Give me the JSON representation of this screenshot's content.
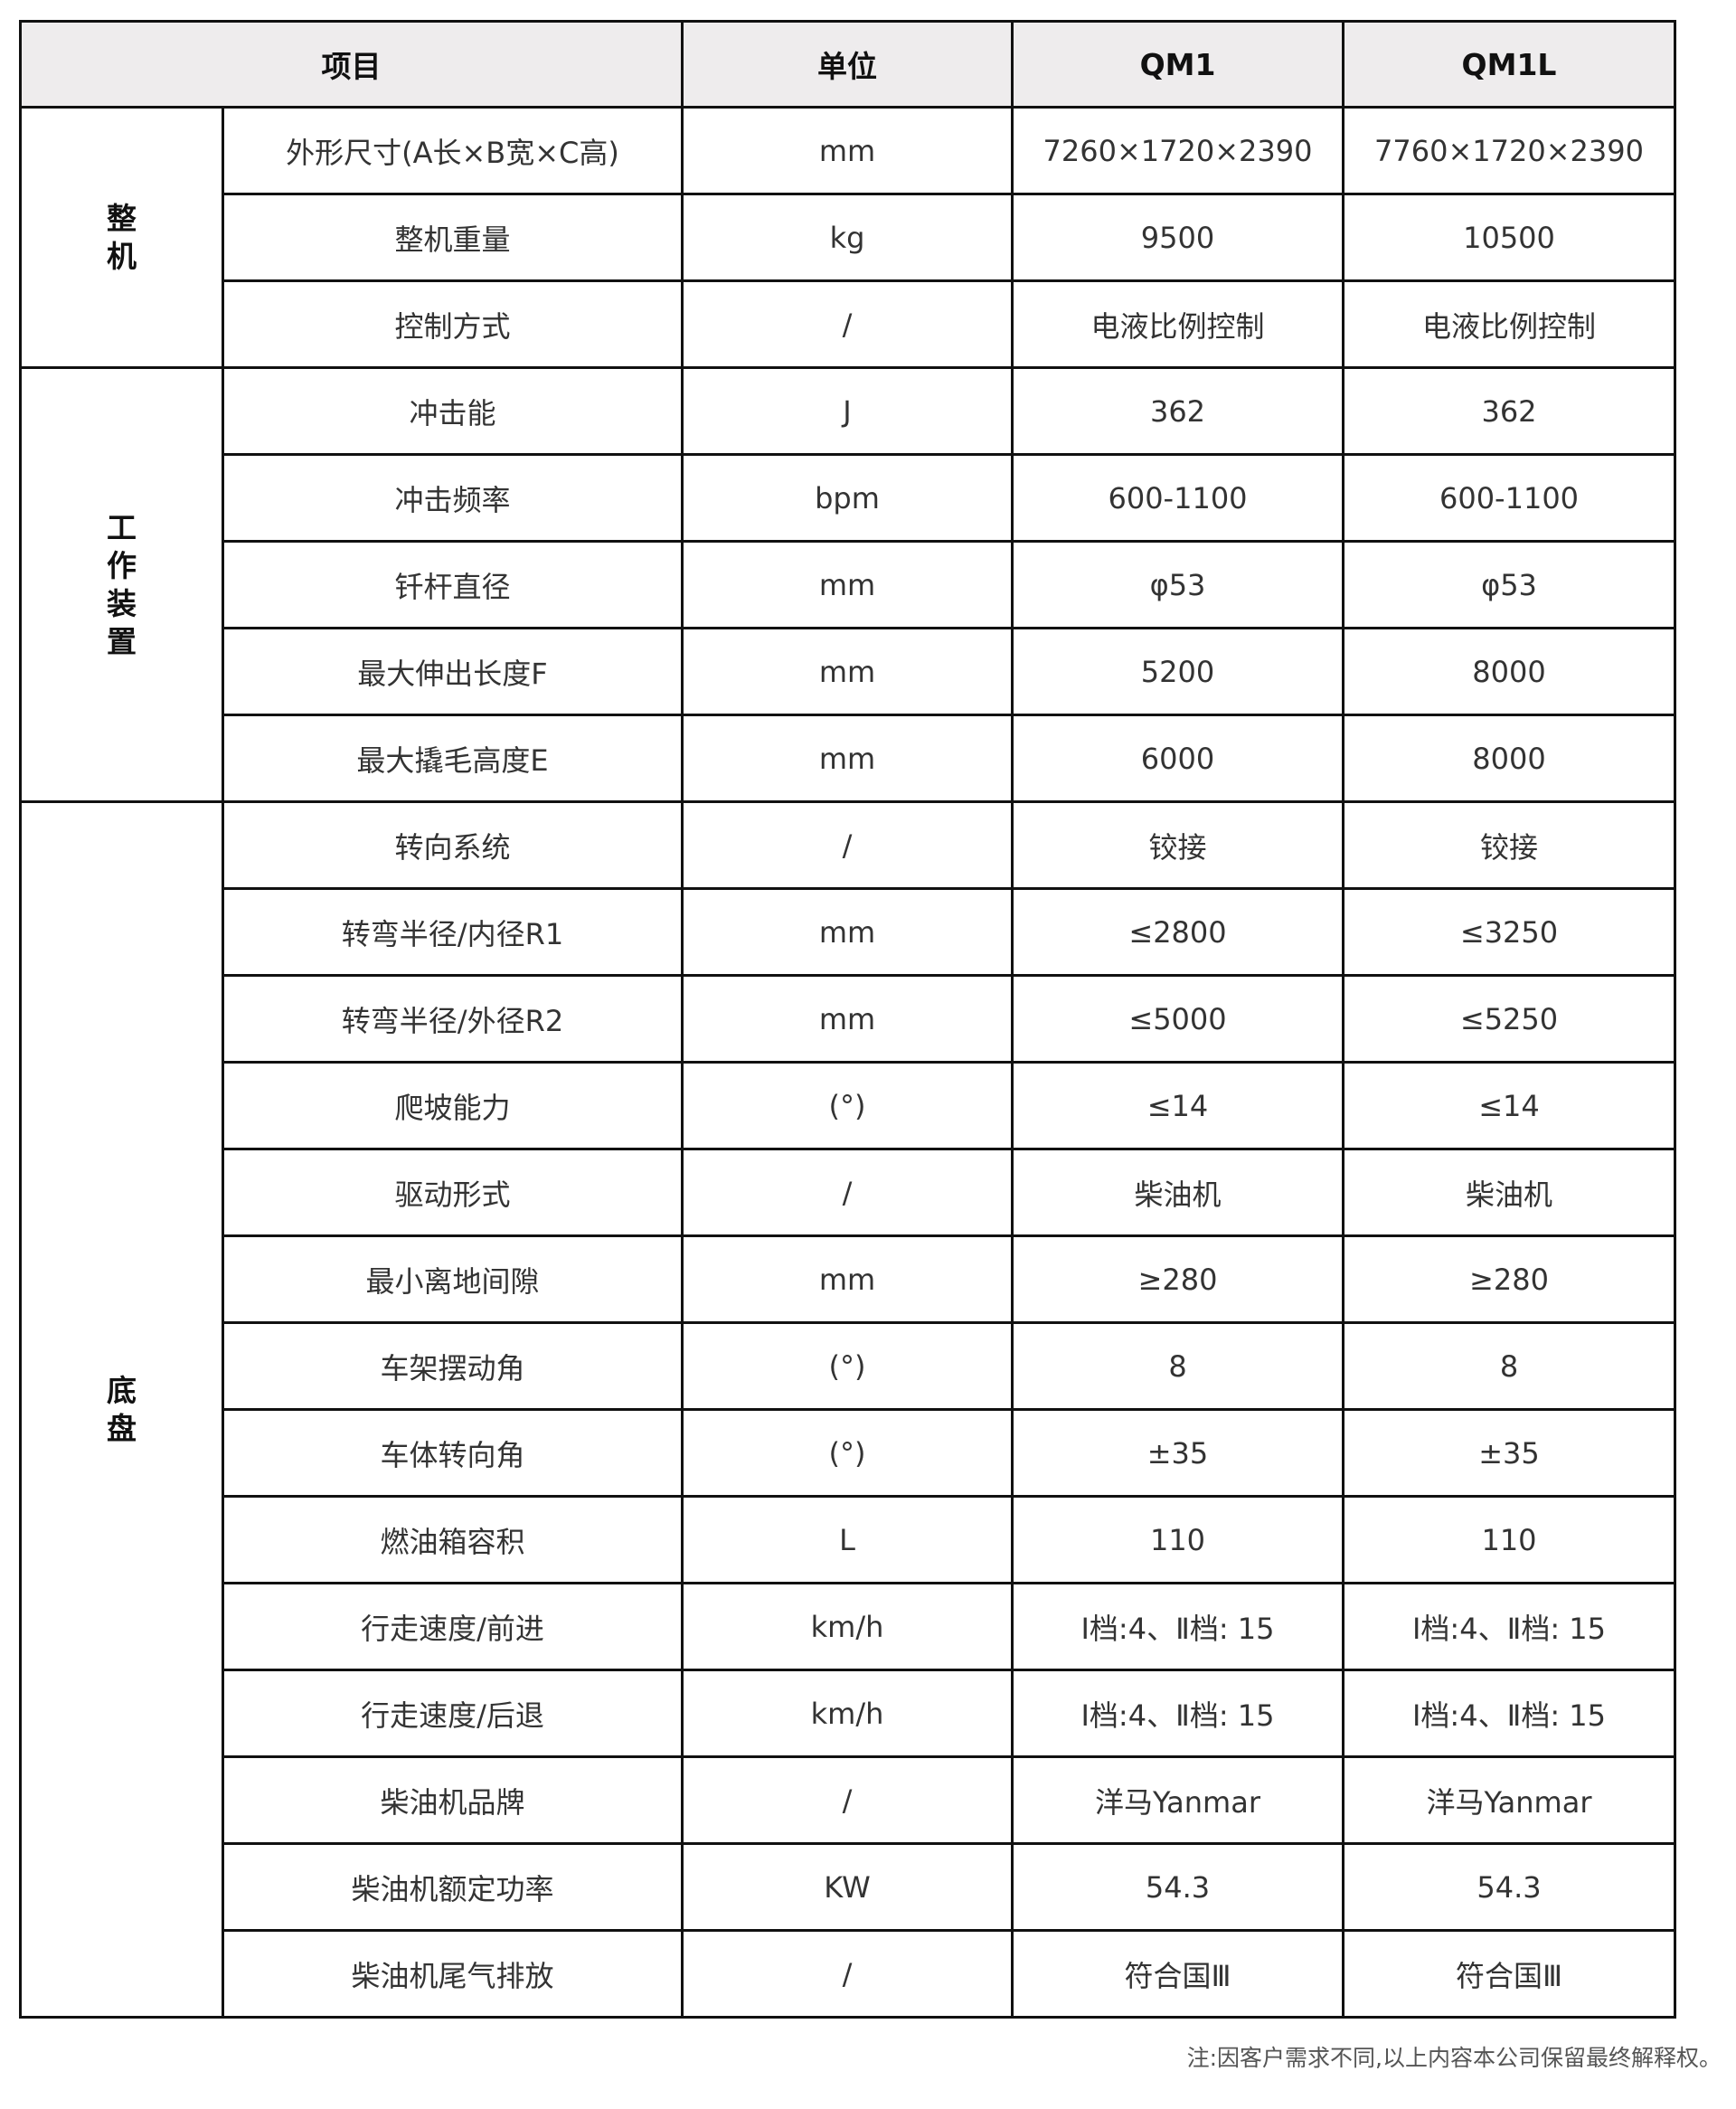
{
  "header": {
    "item": "项目",
    "unit": "单位",
    "model1": "QM1",
    "model2": "QM1L"
  },
  "groups": [
    {
      "category": "整机",
      "rows": [
        {
          "name": "外形尺寸(A长×B宽×C高)",
          "unit": "mm",
          "qm1": "7260×1720×2390",
          "qm1l": "7760×1720×2390"
        },
        {
          "name": "整机重量",
          "unit": "kg",
          "qm1": "9500",
          "qm1l": "10500"
        },
        {
          "name": "控制方式",
          "unit": "/",
          "qm1": "电液比例控制",
          "qm1l": "电液比例控制"
        }
      ]
    },
    {
      "category": "工作装置",
      "rows": [
        {
          "name": "冲击能",
          "unit": "J",
          "qm1": "362",
          "qm1l": "362"
        },
        {
          "name": "冲击频率",
          "unit": "bpm",
          "qm1": "600-1100",
          "qm1l": "600-1100"
        },
        {
          "name": "钎杆直径",
          "unit": "mm",
          "qm1": "φ53",
          "qm1l": "φ53"
        },
        {
          "name": "最大伸出长度F",
          "unit": "mm",
          "qm1": "5200",
          "qm1l": "8000"
        },
        {
          "name": "最大撬毛高度E",
          "unit": "mm",
          "qm1": "6000",
          "qm1l": "8000"
        }
      ]
    },
    {
      "category": "底盘",
      "rows": [
        {
          "name": "转向系统",
          "unit": "/",
          "qm1": "铰接",
          "qm1l": "铰接"
        },
        {
          "name": "转弯半径/内径R1",
          "unit": "mm",
          "qm1": "≤2800",
          "qm1l": "≤3250"
        },
        {
          "name": "转弯半径/外径R2",
          "unit": "mm",
          "qm1": "≤5000",
          "qm1l": "≤5250"
        },
        {
          "name": "爬坡能力",
          "unit": "(°)",
          "qm1": "≤14",
          "qm1l": "≤14"
        },
        {
          "name": "驱动形式",
          "unit": "/",
          "qm1": "柴油机",
          "qm1l": "柴油机"
        },
        {
          "name": "最小离地间隙",
          "unit": "mm",
          "qm1": "≥280",
          "qm1l": "≥280"
        },
        {
          "name": "车架摆动角",
          "unit": "(°)",
          "qm1": "8",
          "qm1l": "8"
        },
        {
          "name": "车体转向角",
          "unit": "(°)",
          "qm1": "±35",
          "qm1l": "±35"
        },
        {
          "name": "燃油箱容积",
          "unit": "L",
          "qm1": "110",
          "qm1l": "110"
        },
        {
          "name": "行走速度/前进",
          "unit": "km/h",
          "qm1": "Ⅰ档:4、Ⅱ档: 15",
          "qm1l": "Ⅰ档:4、Ⅱ档: 15"
        },
        {
          "name": "行走速度/后退",
          "unit": "km/h",
          "qm1": "Ⅰ档:4、Ⅱ档: 15",
          "qm1l": "Ⅰ档:4、Ⅱ档: 15"
        },
        {
          "name": "柴油机品牌",
          "unit": "/",
          "qm1": "洋马Yanmar",
          "qm1l": "洋马Yanmar"
        },
        {
          "name": "柴油机额定功率",
          "unit": "KW",
          "qm1": "54.3",
          "qm1l": "54.3"
        },
        {
          "name": "柴油机尾气排放",
          "unit": "/",
          "qm1": "符合国Ⅲ",
          "qm1l": "符合国Ⅲ"
        }
      ]
    }
  ],
  "footnote": "注:因客户需求不同,以上内容本公司保留最终解释权。"
}
